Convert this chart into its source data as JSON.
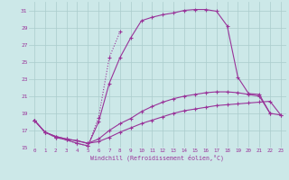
{
  "xlabel": "Windchill (Refroidissement éolien,°C)",
  "bg_color": "#cce8e8",
  "grid_color": "#aacccc",
  "line_color": "#993399",
  "xlim": [
    -0.5,
    23.5
  ],
  "ylim": [
    15,
    32
  ],
  "xticks": [
    0,
    1,
    2,
    3,
    4,
    5,
    6,
    7,
    8,
    9,
    10,
    11,
    12,
    13,
    14,
    15,
    16,
    17,
    18,
    19,
    20,
    21,
    22,
    23
  ],
  "yticks": [
    15,
    17,
    19,
    21,
    23,
    25,
    27,
    29,
    31
  ],
  "lines": [
    {
      "x": [
        0,
        1,
        2,
        3,
        4,
        5,
        6,
        7,
        8,
        9,
        10,
        11,
        12,
        13,
        14,
        15,
        16,
        17,
        18,
        19,
        20,
        21,
        22,
        23
      ],
      "y": [
        18.2,
        16.8,
        16.3,
        16.0,
        15.8,
        15.5,
        15.7,
        16.2,
        16.8,
        17.3,
        17.8,
        18.2,
        18.6,
        19.0,
        19.3,
        19.5,
        19.7,
        19.9,
        20.0,
        20.1,
        20.2,
        20.3,
        20.4,
        18.8
      ]
    },
    {
      "x": [
        0,
        1,
        2,
        3,
        4,
        5,
        6,
        7,
        8,
        9,
        10,
        11,
        12,
        13,
        14,
        15,
        16,
        17,
        18,
        19,
        20,
        21,
        22,
        23
      ],
      "y": [
        18.2,
        16.8,
        16.3,
        16.0,
        15.8,
        15.5,
        16.0,
        17.0,
        17.8,
        18.4,
        19.2,
        19.8,
        20.3,
        20.7,
        21.0,
        21.2,
        21.4,
        21.5,
        21.5,
        21.4,
        21.2,
        21.0,
        19.0,
        18.8
      ]
    },
    {
      "x": [
        0,
        1,
        2,
        3,
        4,
        5,
        6,
        7,
        8,
        9,
        10,
        11,
        12,
        13,
        14,
        15,
        16,
        17,
        18,
        19,
        20,
        21,
        22
      ],
      "y": [
        18.2,
        16.8,
        16.2,
        15.9,
        15.5,
        15.2,
        18.0,
        22.5,
        25.5,
        27.8,
        29.8,
        30.2,
        30.5,
        30.7,
        31.0,
        31.1,
        31.1,
        30.9,
        29.2,
        23.2,
        21.3,
        21.2,
        19.0
      ]
    },
    {
      "x": [
        0,
        1,
        2,
        3,
        4,
        5,
        6,
        7,
        8
      ],
      "y": [
        18.2,
        16.8,
        16.2,
        15.9,
        15.5,
        15.2,
        18.5,
        25.5,
        28.5
      ]
    }
  ]
}
